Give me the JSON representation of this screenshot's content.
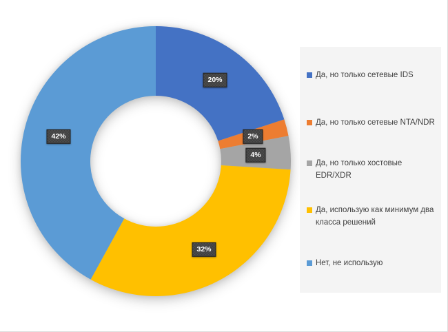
{
  "chart_data": {
    "type": "pie",
    "subtype": "donut",
    "title": "",
    "legend_position": "right",
    "direction": "clockwise",
    "start_angle_deg": 0,
    "categories": [
      "Да, но только сетевые IDS",
      "Да, но только сетевые NTA/NDR",
      "Да, но только хостовые EDR/XDR",
      "Да, использую как минимум два класса решений",
      "Нет, не использую"
    ],
    "values": [
      20,
      2,
      4,
      32,
      42
    ],
    "data_labels": [
      "20%",
      "2%",
      "4%",
      "32%",
      "42%"
    ],
    "colors": [
      "#4472C4",
      "#ED7D31",
      "#A5A5A5",
      "#FFC000",
      "#5B9BD5"
    ]
  },
  "style": {
    "data_label_bg": "#3D3D3D",
    "data_label_text": "#FFFFFF",
    "legend_bg": "#F4F4F4",
    "legend_text": "#3F3F3F",
    "page_border": "#DCDCDC"
  }
}
